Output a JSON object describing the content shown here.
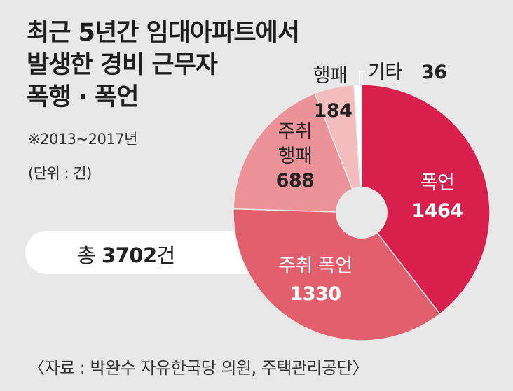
{
  "header": {
    "title_lines": [
      "최근 5년간 임대아파트에서",
      "발생한 경비 근무자",
      "폭행 · 폭언"
    ],
    "period": "※2013~2017년",
    "unit": "(단위 : 건)"
  },
  "total": {
    "label": "총",
    "value": "3702",
    "suffix": "건"
  },
  "source": "〈자료 : 박완수 자유한국당 의원, 주택관리공단〉",
  "chart_data": {
    "type": "pie",
    "title": "최근 5년간 임대아파트에서 발생한 경비 근무자 폭행 · 폭언",
    "unit": "건",
    "donut": true,
    "categories": [
      "폭언",
      "주취 폭언",
      "주취 행패",
      "행패",
      "기타"
    ],
    "values": [
      1464,
      1330,
      688,
      184,
      36
    ],
    "colors": [
      "#d91f4b",
      "#e25f6e",
      "#ec9399",
      "#f3bcbd",
      "#ffffff"
    ],
    "labels": [
      {
        "name_lines": [
          "폭언"
        ],
        "value": "1464"
      },
      {
        "name_lines": [
          "주취 폭언"
        ],
        "value": "1330"
      },
      {
        "name_lines": [
          "주취",
          "행패"
        ],
        "value": "688"
      },
      {
        "name_lines": [
          "행패"
        ],
        "value": "184"
      },
      {
        "name_lines": [
          "기타"
        ],
        "value": "36"
      }
    ]
  }
}
